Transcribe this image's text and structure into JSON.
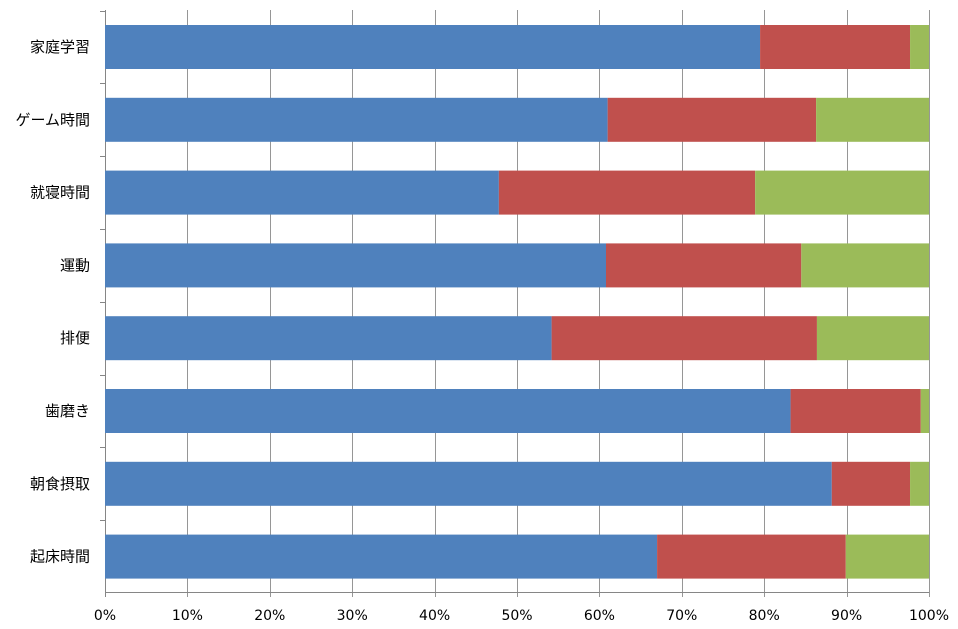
{
  "chart_data": {
    "type": "bar",
    "orientation": "horizontal",
    "stacked": "percent",
    "categories": [
      "家庭学習",
      "ゲーム時間",
      "就寝時間",
      "運動",
      "排便",
      "歯磨き",
      "朝食摂取",
      "起床時間"
    ],
    "series": [
      {
        "values": [
          79.5,
          61,
          47.8,
          60.8,
          54.2,
          83.2,
          88.2,
          67
        ]
      },
      {
        "values": [
          18.2,
          25.3,
          31.1,
          23.7,
          32.2,
          15.8,
          9.5,
          22.9
        ]
      },
      {
        "values": [
          2.3,
          13.7,
          21.1,
          15.5,
          13.6,
          1,
          2.3,
          10.1
        ]
      }
    ],
    "xlim": [
      0,
      100
    ],
    "x_ticks": [
      "0%",
      "10%",
      "20%",
      "30%",
      "40%",
      "50%",
      "60%",
      "70%",
      "80%",
      "90%",
      "100%"
    ],
    "grid": true,
    "legend": "none"
  },
  "colors": {
    "series": [
      "#4f81bd",
      "#c0504d",
      "#9bbb59"
    ],
    "gridline": "#969696",
    "axis": "#868686"
  }
}
